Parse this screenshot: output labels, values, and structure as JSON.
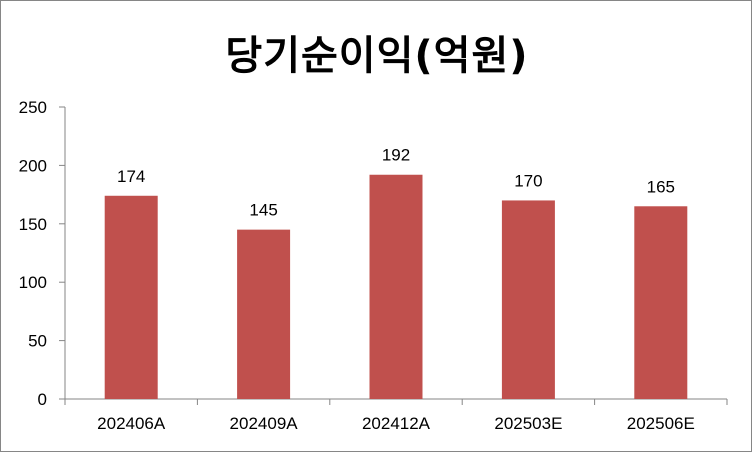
{
  "chart_data": {
    "type": "bar",
    "title": "당기순이익(억원)",
    "categories": [
      "202406A",
      "202409A",
      "202412A",
      "202503E",
      "202506E"
    ],
    "values": [
      174,
      145,
      192,
      170,
      165
    ],
    "data_labels": [
      "174",
      "145",
      "192",
      "170",
      "165"
    ],
    "ylim": [
      0,
      250
    ],
    "yticks": [
      0,
      50,
      100,
      150,
      200,
      250
    ],
    "ytick_labels": [
      "0",
      "50",
      "100",
      "150",
      "200",
      "250"
    ],
    "bar_color": "#c0504d",
    "axis_color": "#868686",
    "grid": false,
    "legend": "none"
  }
}
